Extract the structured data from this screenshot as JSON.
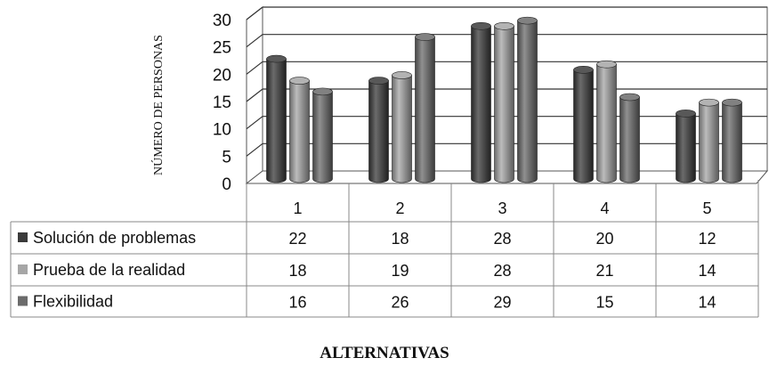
{
  "chart_data": {
    "type": "bar",
    "categories": [
      "1",
      "2",
      "3",
      "4",
      "5"
    ],
    "series": [
      {
        "name": "Solución de problemas",
        "values": [
          22,
          18,
          28,
          20,
          12
        ],
        "color": "#3a3a3a"
      },
      {
        "name": "Prueba de la realidad",
        "values": [
          18,
          19,
          28,
          21,
          14
        ],
        "color": "#a6a6a6"
      },
      {
        "name": "Flexibilidad",
        "values": [
          16,
          26,
          29,
          15,
          14
        ],
        "color": "#6b6b6b"
      }
    ],
    "xlabel": "ALTERNATIVAS",
    "ylabel": "NÚMERO DE PERSONAS",
    "ylim": [
      0,
      30
    ],
    "yticks": [
      0,
      5,
      10,
      15,
      20,
      25,
      30
    ],
    "grid": true,
    "legend": "data-table"
  }
}
